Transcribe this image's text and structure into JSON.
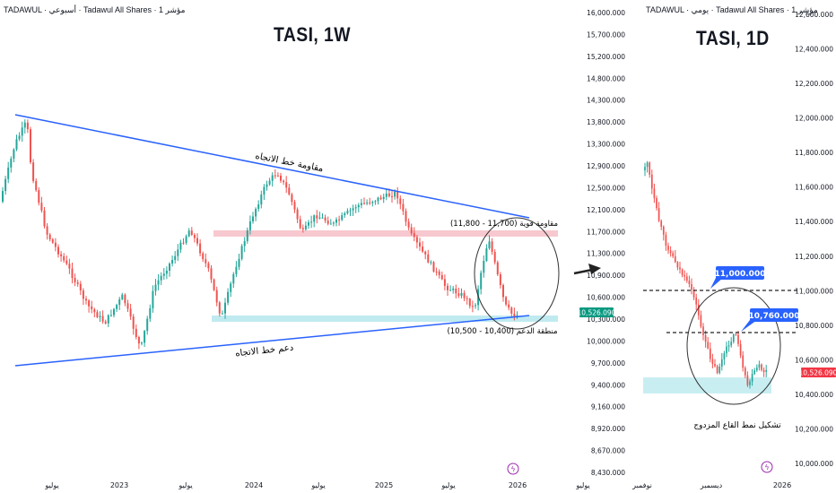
{
  "weekly": {
    "header": "TADAWUL · أسبوعي · Tadawul All Shares · مؤشر 1",
    "title": "TASI, 1W",
    "resistance_line_label": "مقاومة خط الاتجاه",
    "support_line_label": "دعم خط الاتجاه",
    "resistance_zone_label": "مقاومة قوية (11,700 - 11,800)",
    "support_zone_label": "منطقة الدعم (10,400 - 10,500)",
    "last_price": "10,526.090",
    "x_labels": [
      "يوليو",
      "2023",
      "يوليو",
      "2024",
      "يوليو",
      "2025",
      "يوليو",
      "2026",
      "يوليو"
    ],
    "y_labels": [
      "16,000.000",
      "15,700.000",
      "15,200.000",
      "14,800.000",
      "14,300.000",
      "13,800.000",
      "13,300.000",
      "12,900.000",
      "12,500.000",
      "12,100.000",
      "11,700.000",
      "11,300.000",
      "10,900.000",
      "10,600.000",
      "10,300.000",
      "10,000.000",
      "9,700.000",
      "9,400.000",
      "9,160.000",
      "8,920.000",
      "8,670.000",
      "8,430.000"
    ],
    "colors": {
      "up": "#26a69a",
      "down": "#ef5350",
      "trend": "#2962ff",
      "resistance_zone": "#f7c8cf",
      "support_zone": "#bfeaf0",
      "price_badge": "#089981"
    }
  },
  "daily": {
    "header": "TADAWUL · يومي · Tadawul All Shares · مؤشر 1",
    "title": "TASI, 1D",
    "level_high": "11,000.000",
    "level_low": "10,760.000",
    "pattern_label": "تشكيل نمط القاع المزدوج",
    "last_price": "10,526.090",
    "x_labels": [
      "نوفمبر",
      "ديسمبر",
      "2026"
    ],
    "y_labels": [
      "12,600.000",
      "12,400.000",
      "12,200.000",
      "12,000.000",
      "11,800.000",
      "11,600.000",
      "11,400.000",
      "11,200.000",
      "11,000.000",
      "10,800.000",
      "10,600.000",
      "10,400.000",
      "10,200.000",
      "10,000.000"
    ],
    "colors": {
      "up": "#26a69a",
      "down": "#ef5350",
      "callout": "#2962ff",
      "price_badge": "#f23645",
      "support_zone": "#c9eef2"
    }
  },
  "chart_data": [
    {
      "type": "candlestick",
      "title": "TASI, 1W",
      "timeframe": "weekly",
      "ylim": [
        8430,
        16000
      ],
      "x_range": [
        "2022-06",
        "2026-07"
      ],
      "last_price": 10526.09,
      "levels": {
        "resistance_zone": [
          11700,
          11800
        ],
        "support_zone": [
          10400,
          10500
        ]
      },
      "trendlines": [
        "resistance",
        "support"
      ],
      "grid": false
    },
    {
      "type": "candlestick",
      "title": "TASI, 1D",
      "timeframe": "daily",
      "ylim": [
        10000,
        12600
      ],
      "x_range": [
        "2025-10",
        "2026-01"
      ],
      "last_price": 10526.09,
      "levels": [
        11000,
        10760
      ],
      "pattern": "تشكيل نمط القاع المزدوج",
      "grid": false
    }
  ]
}
